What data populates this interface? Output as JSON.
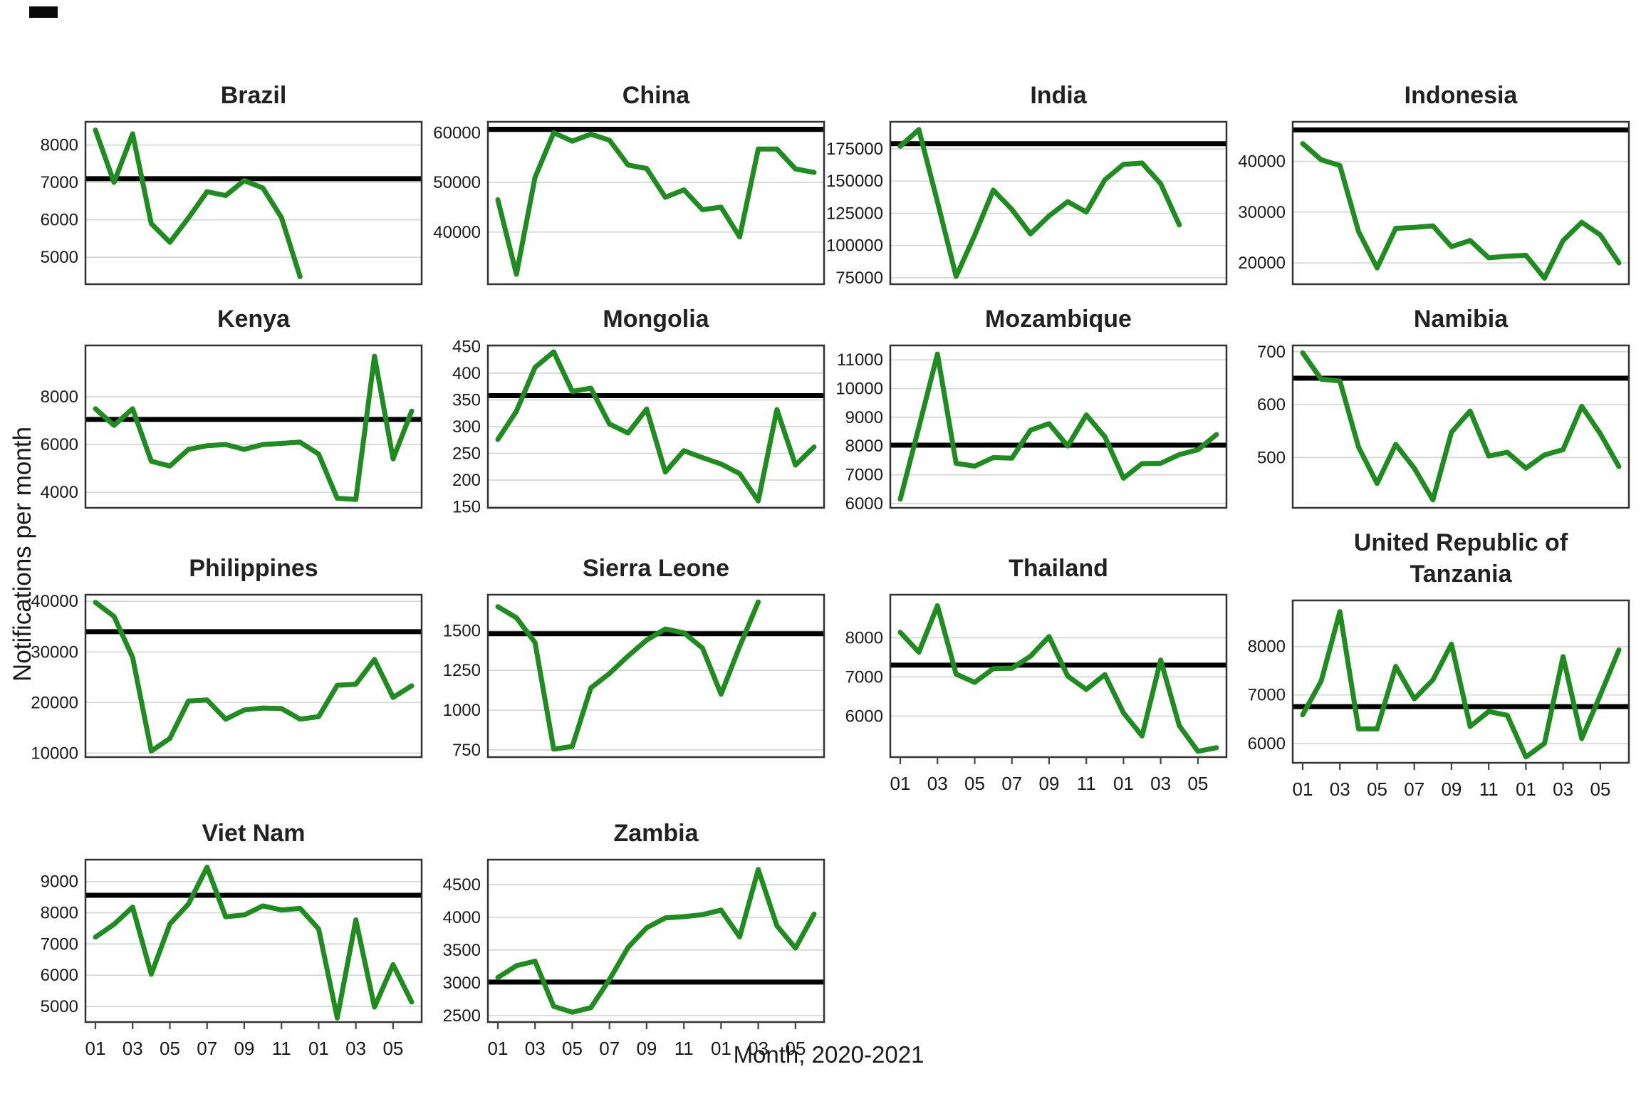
{
  "figure": {
    "y_axis_label": "Notifications per month",
    "x_axis_label": "Month, 2020-2021"
  },
  "axis": {
    "x_tick_labels": [
      "01",
      "03",
      "05",
      "07",
      "09",
      "11",
      "01",
      "03",
      "05"
    ],
    "x_tick_month_indices": [
      0,
      2,
      4,
      6,
      8,
      10,
      12,
      14,
      16
    ],
    "n_month_slots": 18
  },
  "style": {
    "line_color": "#1E8C1E",
    "reference_color": "#000000",
    "grid_color": "#d6d6d6",
    "border_color": "#333333",
    "tick_color": "#444444",
    "text_color": "#1a1a1a"
  },
  "chart_data": [
    {
      "type": "line",
      "title": "Brazil",
      "show_x_axis": false,
      "y_ticks": [
        5000,
        6000,
        7000,
        8000
      ],
      "ylim": [
        4280,
        8620
      ],
      "reference_line": 7100,
      "values": [
        8400,
        7000,
        8300,
        5900,
        5400,
        6050,
        6750,
        6650,
        7050,
        6850,
        6060,
        4480
      ]
    },
    {
      "type": "line",
      "title": "China",
      "show_x_axis": false,
      "y_ticks": [
        40000,
        50000,
        60000
      ],
      "ylim": [
        29500,
        62200
      ],
      "reference_line": 60700,
      "values": [
        46500,
        31500,
        51000,
        60000,
        58300,
        59700,
        58500,
        53500,
        52800,
        47000,
        48500,
        44500,
        45000,
        39000,
        56700,
        56700,
        52700,
        52000
      ]
    },
    {
      "type": "line",
      "title": "India",
      "show_x_axis": false,
      "y_ticks": [
        75000,
        100000,
        125000,
        150000,
        175000
      ],
      "ylim": [
        70000,
        196000
      ],
      "reference_line": 179000,
      "values": [
        177000,
        190000,
        134000,
        76000,
        108000,
        143000,
        128000,
        109000,
        123000,
        134000,
        126000,
        151000,
        163000,
        164000,
        148000,
        116000
      ]
    },
    {
      "type": "line",
      "title": "Indonesia",
      "show_x_axis": false,
      "y_ticks": [
        20000,
        30000,
        40000
      ],
      "ylim": [
        15800,
        47800
      ],
      "reference_line": 46200,
      "values": [
        43500,
        40300,
        39200,
        26200,
        19000,
        26800,
        27000,
        27300,
        23200,
        24400,
        21000,
        21300,
        21500,
        17000,
        24400,
        28000,
        25500,
        20000
      ]
    },
    {
      "type": "line",
      "title": "Kenya",
      "show_x_axis": false,
      "y_ticks": [
        4000,
        6000,
        8000
      ],
      "ylim": [
        3350,
        10150
      ],
      "reference_line": 7050,
      "values": [
        7500,
        6800,
        7500,
        5300,
        5100,
        5800,
        5950,
        6000,
        5800,
        6000,
        6050,
        6100,
        5600,
        3750,
        3700,
        9700,
        5400,
        7400
      ]
    },
    {
      "type": "line",
      "title": "Mongolia",
      "show_x_axis": false,
      "y_ticks": [
        150,
        200,
        250,
        300,
        350,
        400,
        450
      ],
      "ylim": [
        148,
        452
      ],
      "reference_line": 358,
      "values": [
        276,
        329,
        411,
        440,
        366,
        372,
        305,
        288,
        333,
        215,
        255,
        242,
        230,
        212,
        161,
        332,
        228,
        262
      ]
    },
    {
      "type": "line",
      "title": "Mozambique",
      "show_x_axis": false,
      "y_ticks": [
        6000,
        7000,
        8000,
        9000,
        10000,
        11000
      ],
      "ylim": [
        5850,
        11500
      ],
      "reference_line": 8030,
      "values": [
        6150,
        8650,
        11200,
        7400,
        7300,
        7600,
        7580,
        8550,
        8780,
        8000,
        9080,
        8320,
        6880,
        7390,
        7400,
        7700,
        7870,
        8400
      ]
    },
    {
      "type": "line",
      "title": "Namibia",
      "show_x_axis": false,
      "y_ticks": [
        500,
        600,
        700
      ],
      "ylim": [
        405,
        712
      ],
      "reference_line": 650,
      "values": [
        698,
        648,
        645,
        520,
        451,
        525,
        480,
        420,
        548,
        588,
        503,
        510,
        480,
        505,
        515,
        597,
        545,
        483
      ]
    },
    {
      "type": "line",
      "title": "Philippines",
      "show_x_axis": false,
      "y_ticks": [
        10000,
        20000,
        30000,
        40000
      ],
      "ylim": [
        9200,
        41300
      ],
      "reference_line": 34000,
      "values": [
        39800,
        37000,
        28900,
        10400,
        12900,
        20300,
        20500,
        16700,
        18500,
        18900,
        18800,
        16700,
        17200,
        23400,
        23600,
        28500,
        21000,
        23300
      ]
    },
    {
      "type": "line",
      "title": "Sierra Leone",
      "show_x_axis": false,
      "y_ticks": [
        750,
        1000,
        1250,
        1500
      ],
      "ylim": [
        705,
        1725
      ],
      "reference_line": 1480,
      "values": [
        1650,
        1580,
        1425,
        755,
        772,
        1140,
        1230,
        1340,
        1440,
        1510,
        1485,
        1390,
        1100,
        1400,
        1680
      ]
    },
    {
      "type": "line",
      "title": "Thailand",
      "show_x_axis": true,
      "y_ticks": [
        6000,
        7000,
        8000
      ],
      "ylim": [
        4950,
        9100
      ],
      "reference_line": 7300,
      "values": [
        8140,
        7630,
        8820,
        7070,
        6860,
        7210,
        7220,
        7530,
        8030,
        7020,
        6680,
        7060,
        6080,
        5490,
        7430,
        5750,
        5100,
        5190
      ]
    },
    {
      "type": "line",
      "title": "United Republic of Tanzania",
      "show_x_axis": true,
      "y_ticks": [
        6000,
        7000,
        8000
      ],
      "ylim": [
        5600,
        8950
      ],
      "reference_line": 6760,
      "values": [
        6590,
        7290,
        8720,
        6300,
        6300,
        7590,
        6920,
        7310,
        8050,
        6350,
        6660,
        6580,
        5720,
        6000,
        7790,
        6100,
        7000,
        7930
      ]
    },
    {
      "type": "line",
      "title": "Viet Nam",
      "show_x_axis": true,
      "y_ticks": [
        5000,
        6000,
        7000,
        8000,
        9000
      ],
      "ylim": [
        4500,
        9700
      ],
      "reference_line": 8560,
      "values": [
        7220,
        7630,
        8180,
        6030,
        7640,
        8280,
        9460,
        7870,
        7930,
        8220,
        8090,
        8140,
        7480,
        4630,
        7770,
        4980,
        6340,
        5140
      ]
    },
    {
      "type": "line",
      "title": "Zambia",
      "show_x_axis": true,
      "y_ticks": [
        2500,
        3000,
        3500,
        4000,
        4500
      ],
      "ylim": [
        2400,
        4880
      ],
      "reference_line": 3010,
      "values": [
        3080,
        3260,
        3330,
        2640,
        2550,
        2620,
        3050,
        3540,
        3840,
        3990,
        4010,
        4040,
        4110,
        3700,
        4730,
        3870,
        3530,
        4050
      ]
    }
  ]
}
